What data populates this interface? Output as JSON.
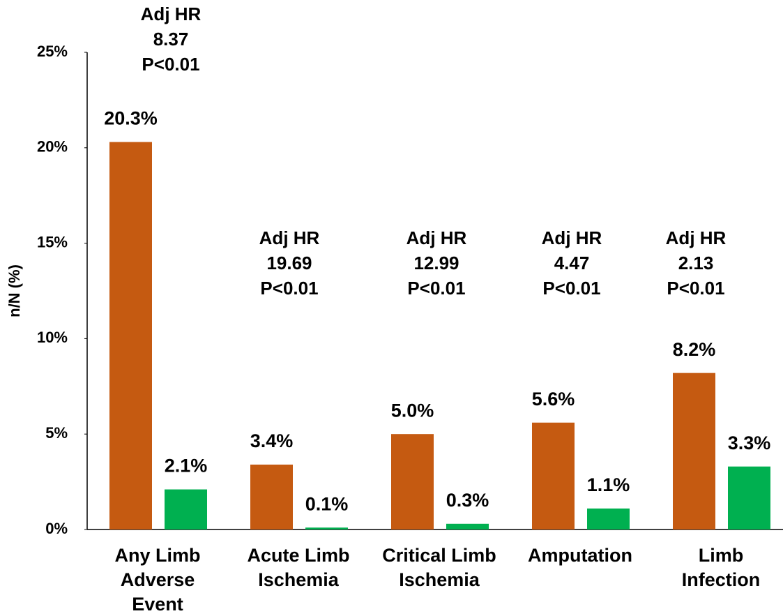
{
  "chart_data": {
    "type": "bar",
    "y_label": "n/N (%)",
    "categories": [
      [
        "Any Limb",
        "Adverse",
        "Event"
      ],
      [
        "Acute Limb",
        "Ischemia"
      ],
      [
        "Critical Limb",
        "Ischemia"
      ],
      [
        "Amputation"
      ],
      [
        "Limb",
        "Infection"
      ]
    ],
    "series": [
      {
        "color": "#c55a11",
        "values": [
          20.3,
          3.4,
          5.0,
          5.6,
          8.2
        ],
        "value_labels": [
          "20.3%",
          "3.4%",
          "5.0%",
          "5.6%",
          "8.2%"
        ]
      },
      {
        "color": "#00b050",
        "values": [
          2.1,
          0.1,
          0.3,
          1.1,
          3.3
        ],
        "value_labels": [
          "2.1%",
          "0.1%",
          "0.3%",
          "1.1%",
          "3.3%"
        ]
      }
    ],
    "annotations": [
      [
        "Adj HR",
        "8.37",
        "P<0.01"
      ],
      [
        "Adj HR",
        "19.69",
        "P<0.01"
      ],
      [
        "Adj HR",
        "12.99",
        "P<0.01"
      ],
      [
        "Adj HR",
        "4.47",
        "P<0.01"
      ],
      [
        "Adj HR",
        "2.13",
        "P<0.01"
      ]
    ],
    "ylim": [
      0,
      25
    ],
    "yticks": [
      {
        "value": 0,
        "label": "0%"
      },
      {
        "value": 5,
        "label": "5%"
      },
      {
        "value": 10,
        "label": "10%"
      },
      {
        "value": 15,
        "label": "15%"
      },
      {
        "value": 20,
        "label": "20%"
      },
      {
        "value": 25,
        "label": "25%"
      }
    ],
    "grid": false
  }
}
